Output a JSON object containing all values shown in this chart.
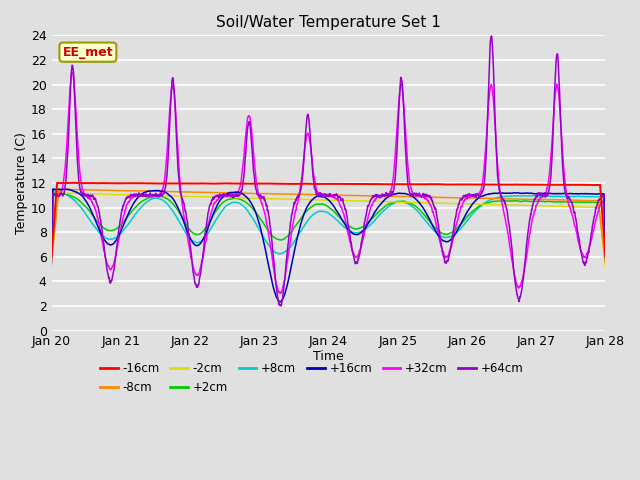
{
  "title": "Soil/Water Temperature Set 1",
  "xlabel": "Time",
  "ylabel": "Temperature (C)",
  "xlim": [
    0,
    8
  ],
  "ylim": [
    0,
    24
  ],
  "yticks": [
    0,
    2,
    4,
    6,
    8,
    10,
    12,
    14,
    16,
    18,
    20,
    22,
    24
  ],
  "xtick_labels": [
    "Jan 20",
    "Jan 21",
    "Jan 22",
    "Jan 23",
    "Jan 24",
    "Jan 25",
    "Jan 26",
    "Jan 27",
    "Jan 28"
  ],
  "background_color": "#e0e0e0",
  "plot_bg_color": "#e0e0e0",
  "grid_color": "#ffffff",
  "annotation_text": "EE_met",
  "annotation_color": "#cc0000",
  "annotation_bg": "#ffffcc",
  "annotation_border": "#999900",
  "series_colors": {
    "-16cm": "#ff0000",
    "-8cm": "#ff8800",
    "-2cm": "#dddd00",
    "+2cm": "#00cc00",
    "+8cm": "#00cccc",
    "+16cm": "#0000bb",
    "+32cm": "#ff00ff",
    "+64cm": "#9900cc"
  },
  "legend_order": [
    "-16cm",
    "-8cm",
    "-2cm",
    "+2cm",
    "+8cm",
    "+16cm",
    "+32cm",
    "+64cm"
  ],
  "peak_centers": [
    0.3,
    1.75,
    2.85,
    3.7,
    5.05,
    6.35,
    7.3
  ],
  "peak32_heights": [
    10.0,
    9.0,
    6.5,
    5.0,
    9.0,
    9.0,
    9.0
  ],
  "peak64_heights": [
    10.5,
    9.5,
    6.0,
    6.5,
    9.5,
    13.0,
    11.5
  ],
  "trough_centers": [
    0.85,
    2.1,
    3.3,
    4.4,
    5.7,
    6.75,
    7.7
  ],
  "trough32_depths": [
    6.0,
    6.5,
    8.0,
    5.0,
    5.0,
    7.5,
    5.0
  ],
  "trough64_depths": [
    7.0,
    7.5,
    9.0,
    5.5,
    5.5,
    8.5,
    5.5
  ]
}
